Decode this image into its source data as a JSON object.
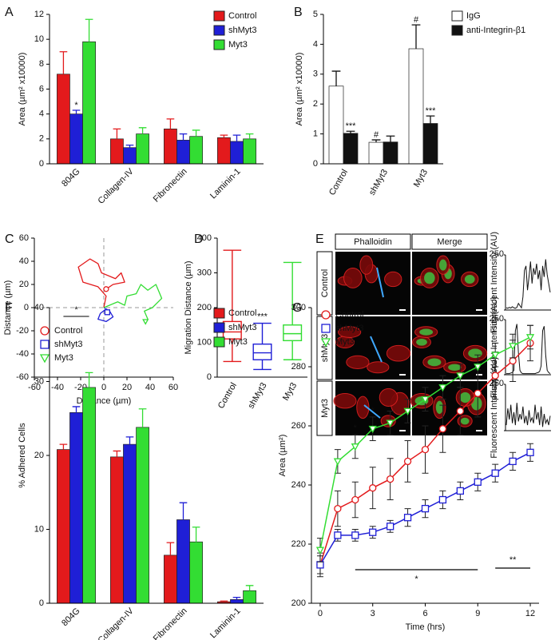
{
  "chart_data": [
    {
      "type": "bar",
      "label": "A",
      "ylabel": "Area (µm² x10000)",
      "categories": [
        "804G",
        "Collagen-IV",
        "Fibronectin",
        "Laminin-1"
      ],
      "series": [
        {
          "name": "Control",
          "color": "#e31a1c",
          "values": [
            7.2,
            2.0,
            2.8,
            2.1
          ],
          "errors": [
            1.8,
            0.8,
            0.8,
            0.2
          ]
        },
        {
          "name": "shMyt3",
          "color": "#1f1fd6",
          "values": [
            4.0,
            1.3,
            1.9,
            1.8
          ],
          "errors": [
            0.3,
            0.2,
            0.5,
            0.5
          ]
        },
        {
          "name": "Myt3",
          "color": "#33dd33",
          "values": [
            9.8,
            2.4,
            2.2,
            2.0
          ],
          "errors": [
            1.8,
            0.5,
            0.5,
            0.4
          ]
        }
      ],
      "ylim": [
        0,
        12
      ],
      "yticks": [
        0,
        2,
        4,
        6,
        8,
        10,
        12
      ],
      "legend": "upper right",
      "annotations": [
        "*"
      ]
    },
    {
      "type": "bar",
      "label": "B",
      "ylabel": "Area (µm² x10000)",
      "categories": [
        "Control",
        "shMyt3",
        "Myt3"
      ],
      "series": [
        {
          "name": "IgG",
          "color": "#ffffff",
          "values": [
            2.6,
            0.72,
            3.85
          ],
          "errors": [
            0.5,
            0.08,
            0.8
          ]
        },
        {
          "name": "anti-Integrin-β1",
          "color": "#111111",
          "values": [
            1.02,
            0.73,
            1.35
          ],
          "errors": [
            0.07,
            0.2,
            0.25
          ]
        }
      ],
      "ylim": [
        0,
        5
      ],
      "yticks": [
        0,
        1,
        2,
        3,
        4,
        5
      ],
      "legend": "upper right",
      "annotations": [
        "***",
        "#",
        "#",
        "***"
      ]
    },
    {
      "type": "trajectory",
      "label": "C",
      "xlabel": "Distance (µm)",
      "ylabel": "Distance (µm)",
      "series": [
        {
          "name": "Control",
          "color": "#e31a1c",
          "marker": "circle",
          "x": [
            0,
            2,
            -5,
            -18,
            -22,
            -12,
            -5,
            -2,
            10,
            15,
            18,
            8,
            2
          ],
          "y": [
            0,
            10,
            18,
            22,
            35,
            42,
            38,
            30,
            25,
            30,
            22,
            20,
            16
          ]
        },
        {
          "name": "shMyt3",
          "color": "#1f1fd6",
          "marker": "square",
          "x": [
            0,
            5,
            8,
            2,
            -5,
            -3,
            1,
            3
          ],
          "y": [
            0,
            -3,
            -8,
            -12,
            -10,
            -5,
            -2,
            -4
          ]
        },
        {
          "name": "Myt3",
          "color": "#33dd33",
          "marker": "triangle",
          "x": [
            0,
            12,
            18,
            20,
            28,
            32,
            38,
            45,
            50,
            42,
            35,
            38,
            36
          ],
          "y": [
            0,
            5,
            2,
            10,
            12,
            20,
            15,
            20,
            8,
            0,
            -3,
            -10,
            -12
          ]
        }
      ],
      "xlim": [
        -60,
        60
      ],
      "ylim": [
        -60,
        60
      ],
      "xticks": [
        -60,
        -40,
        -20,
        0,
        20,
        40,
        60
      ],
      "yticks": [
        -60,
        -40,
        -20,
        0,
        20,
        40,
        60
      ],
      "zero_lines": true,
      "legend": "lower left"
    },
    {
      "type": "box",
      "label": "D",
      "ylabel": "Migration Distance (µm)",
      "categories": [
        "Control",
        "shMyt3",
        "Myt3"
      ],
      "colors": [
        "#e31a1c",
        "#1f1fd6",
        "#33dd33"
      ],
      "min": [
        45,
        22,
        50
      ],
      "q1": [
        110,
        50,
        105
      ],
      "median": [
        130,
        70,
        125
      ],
      "q3": [
        160,
        95,
        150
      ],
      "max": [
        365,
        155,
        330
      ],
      "ylim": [
        0,
        400
      ],
      "yticks": [
        0,
        100,
        200,
        300,
        400
      ],
      "annotations": [
        "***"
      ]
    },
    {
      "type": "image_panel",
      "label": "E",
      "columns": [
        "Phalloidin",
        "Merge"
      ],
      "column_colors": [
        "#e31a1c",
        "#111111"
      ],
      "rows": [
        "Control",
        "shMyt3",
        "Myt3"
      ],
      "profile_ylabel": "Fluorescent Intensity (AU)",
      "profile_ylim": [
        0,
        250
      ],
      "profile_yticks": [
        0,
        250
      ],
      "profiles": [
        [
          10,
          8,
          12,
          9,
          15,
          10,
          8,
          12,
          30,
          20,
          10,
          60,
          180,
          200,
          90,
          150,
          220,
          120,
          190,
          160,
          210,
          140,
          180,
          90,
          200,
          150,
          230,
          160,
          120,
          80
        ],
        [
          5,
          5,
          5,
          8,
          10,
          20,
          200,
          230,
          100,
          20,
          8,
          5,
          5,
          5,
          5,
          5,
          5,
          5,
          5,
          5,
          8,
          10,
          15,
          40,
          200,
          220,
          90,
          20,
          10,
          5
        ],
        [
          30,
          120,
          60,
          140,
          40,
          100,
          30,
          150,
          50,
          90,
          60,
          130,
          40,
          80,
          30,
          110,
          50,
          70,
          40,
          140,
          60,
          100,
          30,
          130,
          20,
          90,
          40,
          60,
          30,
          80
        ]
      ]
    },
    {
      "type": "bar",
      "label": "F",
      "ylabel": "% Adhered Cells",
      "categories": [
        "804G",
        "Collagen-IV",
        "Fibronectin",
        "Laminin-1"
      ],
      "series": [
        {
          "name": "Control",
          "color": "#e31a1c",
          "values": [
            20.8,
            19.8,
            6.5,
            0.2
          ],
          "errors": [
            0.7,
            0.8,
            1.7,
            0.1
          ]
        },
        {
          "name": "shMyt3",
          "color": "#1f1fd6",
          "values": [
            25.8,
            21.5,
            11.3,
            0.5
          ],
          "errors": [
            0.8,
            1.0,
            2.3,
            0.3
          ]
        },
        {
          "name": "Myt3",
          "color": "#33dd33",
          "values": [
            29.2,
            23.8,
            8.3,
            1.7
          ],
          "errors": [
            2.0,
            2.5,
            2.0,
            0.7
          ]
        }
      ],
      "ylim": [
        0,
        40
      ],
      "yticks": [
        0,
        10,
        20,
        30,
        40
      ],
      "legend": "upper right",
      "annotations": [
        "*"
      ]
    },
    {
      "type": "line",
      "label": "G",
      "xlabel": "Time (hrs)",
      "ylabel": "Area (µm²)",
      "x": [
        0,
        1,
        2,
        3,
        4,
        5,
        6,
        7,
        8,
        9,
        10,
        11,
        12
      ],
      "series": [
        {
          "name": "Control",
          "color": "#e31a1c",
          "marker": "circle",
          "values": [
            213,
            232,
            235,
            239,
            242,
            248,
            252,
            259,
            265,
            271,
            277,
            282,
            288
          ],
          "errors": [
            4,
            6,
            6,
            7,
            7,
            7,
            8,
            8,
            8,
            8,
            8,
            7,
            6
          ]
        },
        {
          "name": "shMyt3",
          "color": "#1f1fd6",
          "marker": "square",
          "values": [
            213,
            223,
            223,
            224,
            226,
            229,
            232,
            235,
            238,
            241,
            244,
            248,
            251
          ],
          "errors": [
            3,
            2,
            2,
            2,
            2,
            3,
            3,
            3,
            3,
            3,
            3,
            3,
            3
          ]
        },
        {
          "name": "Myt3",
          "color": "#33dd33",
          "marker": "triangle",
          "values": [
            218,
            248,
            253,
            259,
            261,
            265,
            269,
            273,
            277,
            280,
            284,
            287,
            290
          ],
          "errors": [
            4,
            4,
            4,
            4,
            4,
            4,
            4,
            4,
            4,
            4,
            4,
            4,
            4
          ]
        }
      ],
      "xlim": [
        -0.5,
        12.5
      ],
      "ylim": [
        200,
        300
      ],
      "xticks": [
        0,
        3,
        6,
        9,
        12
      ],
      "yticks": [
        200,
        220,
        240,
        260,
        280,
        300
      ],
      "legend": "upper left",
      "annotations": [
        "*",
        "*",
        "*",
        "**"
      ]
    }
  ]
}
